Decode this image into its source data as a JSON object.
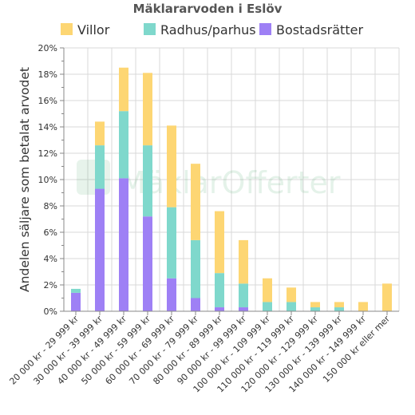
{
  "watermark": "MäklarOfferter",
  "colors": {
    "Villor": "#fdd673",
    "Radhus/parhus": "#7fd8cc",
    "Bostadsrätter": "#9e80f5",
    "grid": "#d9d9d9",
    "axis": "#888888"
  },
  "chart_data": {
    "type": "bar",
    "stacked": true,
    "title": "Mäklararvoden i Eslöv",
    "ylabel": "Andelen säljare som betalat arvodet",
    "xlabel": "",
    "ylim": [
      0,
      20
    ],
    "yticks": [
      "0%",
      "2%",
      "4%",
      "6%",
      "8%",
      "10%",
      "12%",
      "14%",
      "16%",
      "18%",
      "20%"
    ],
    "grid": true,
    "legend_position": "top",
    "categories": [
      "20 000 kr - 29 999 kr",
      "30 000 kr - 39 999 kr",
      "40 000 kr - 49 999 kr",
      "50 000 kr - 59 999 kr",
      "60 000 kr - 69 999 kr",
      "70 000 kr - 79 999 kr",
      "80 000 kr - 89 999 kr",
      "90 000 kr - 99 999 kr",
      "100 000 kr - 109 999 kr",
      "110 000 kr - 119 999 kr",
      "120 000 kr - 129 999 kr",
      "130 000 kr - 139 999 kr",
      "140 000 kr - 149 999 kr",
      "150 000 kr eller mer"
    ],
    "series": [
      {
        "name": "Bostadsrätter",
        "values": [
          1.4,
          9.3,
          10.1,
          7.2,
          2.5,
          1.0,
          0.3,
          0.3,
          0,
          0,
          0,
          0,
          0,
          0
        ]
      },
      {
        "name": "Radhus/parhus",
        "values": [
          0.3,
          3.3,
          5.1,
          5.4,
          5.4,
          4.4,
          2.6,
          1.8,
          0.7,
          0.7,
          0.3,
          0.3,
          0,
          0
        ]
      },
      {
        "name": "Villor",
        "values": [
          0,
          1.8,
          3.3,
          5.5,
          6.2,
          5.8,
          4.7,
          3.3,
          1.8,
          1.1,
          0.4,
          0.4,
          0.7,
          2.1
        ]
      }
    ],
    "legend": [
      "Villor",
      "Radhus/parhus",
      "Bostadsrätter"
    ]
  }
}
